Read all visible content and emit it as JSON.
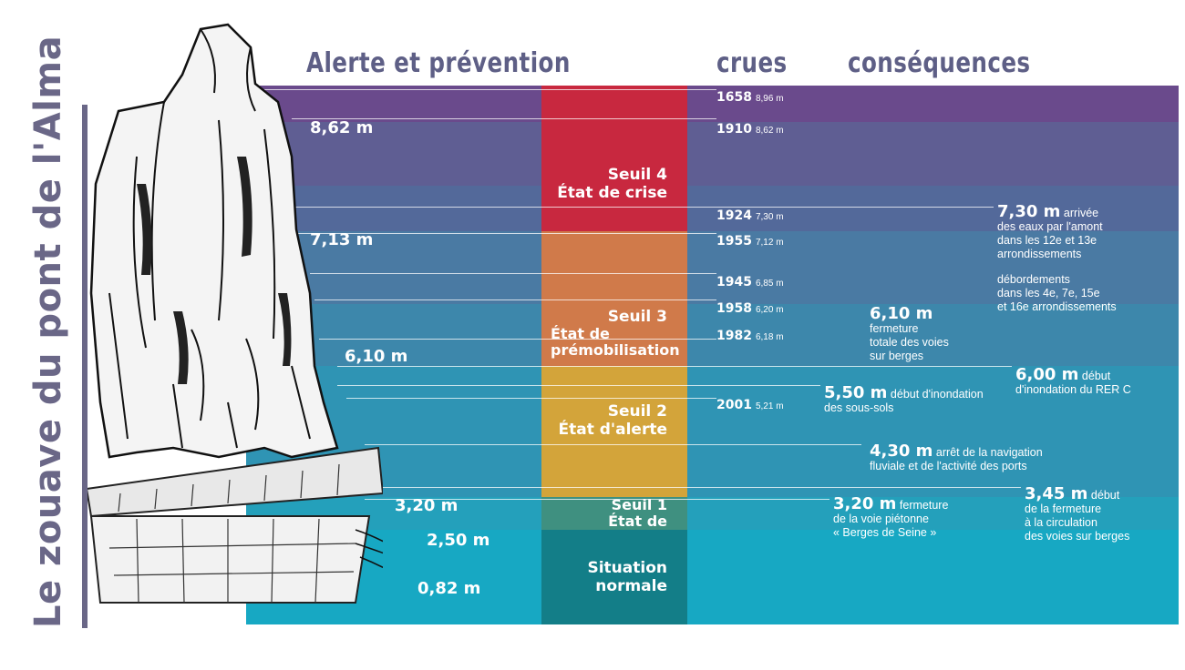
{
  "headers": {
    "alerte": "Alerte et prévention",
    "crues": "crues",
    "consequences": "conséquences"
  },
  "title": "Le zouave du pont de l'Alma",
  "seuils": [
    {
      "line1": "Seuil 4",
      "line2": "État de crise",
      "color": "#c8283f"
    },
    {
      "line1": "Seuil 3",
      "line2": "État de prémobilisation",
      "color": "#d07a4a"
    },
    {
      "line1": "Seuil 2",
      "line2": "État d'alerte",
      "color": "#d3a43a"
    },
    {
      "line1": "Seuil 1",
      "line2": "État de vigilance",
      "color": "#3f9080"
    },
    {
      "line1": "Situation",
      "line2": "normale",
      "color": "#137e88"
    }
  ],
  "alert_levels": [
    "8,62 m",
    "7,13 m",
    "6,10 m",
    "3,20 m",
    "2,50 m",
    "0,82 m"
  ],
  "crues": [
    {
      "year": "1658",
      "height": "8,96 m"
    },
    {
      "year": "1910",
      "height": "8,62 m"
    },
    {
      "year": "1924",
      "height": "7,30 m"
    },
    {
      "year": "1955",
      "height": "7,12 m"
    },
    {
      "year": "1945",
      "height": "6,85 m"
    },
    {
      "year": "1958",
      "height": "6,20 m"
    },
    {
      "year": "1982",
      "height": "6,18 m"
    },
    {
      "year": "2001",
      "height": "5,21 m"
    }
  ],
  "consequences": [
    {
      "level": "7,30 m",
      "text1": "arrivée",
      "text2": "des eaux par l'amont",
      "text3": "dans les 12e et 13e",
      "text4": "arrondissements"
    },
    {
      "level": "",
      "text1": "débordements",
      "text2": "dans les 4e, 7e, 15e",
      "text3": "et 16e arrondissements"
    },
    {
      "level": "6,10 m",
      "text1": "fermeture",
      "text2": "totale des voies",
      "text3": "sur berges"
    },
    {
      "level": "6,00 m",
      "text1": "début",
      "text2": "d'inondation du RER C"
    },
    {
      "level": "5,50 m",
      "text1": "début d'inondation",
      "text2": "des sous-sols"
    },
    {
      "level": "4,30 m",
      "text1": "arrêt de la navigation",
      "text2": "fluviale et de l'activité des ports"
    },
    {
      "level": "3,45 m",
      "text1": "début",
      "text2": "de la fermeture",
      "text3": "à la circulation",
      "text4": "des voies sur berges"
    },
    {
      "level": "3,20 m",
      "text1": "fermeture",
      "text2": "de la voie piétonne",
      "text3": "« Berges de Seine »"
    }
  ]
}
